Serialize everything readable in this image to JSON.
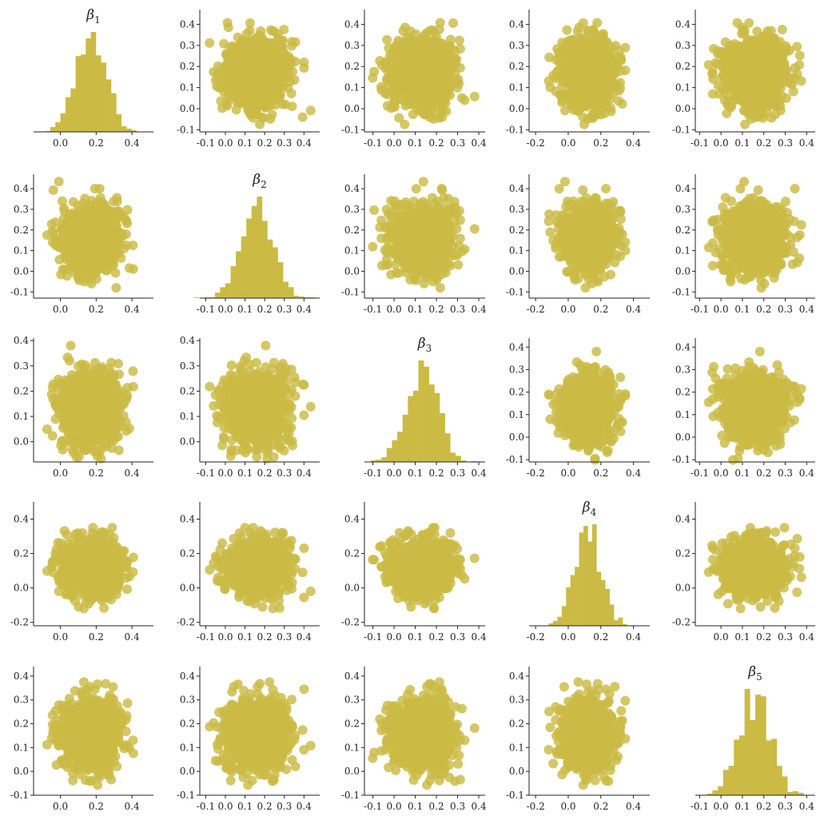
{
  "chart_data": {
    "type": "scatter",
    "layout": "pair-plot",
    "color": "#cbbb45",
    "grid": false,
    "legend": "none",
    "variables": [
      {
        "symbol": "β",
        "subscript": "1",
        "mean": 0.17,
        "sd": 0.085,
        "xlim": [
          -0.15,
          0.52
        ],
        "xticks": [
          "0.0",
          "0.2",
          "0.4"
        ],
        "ylim": [
          -0.11,
          0.47
        ],
        "yticks": [
          "-0.1",
          "0.0",
          "0.1",
          "0.2",
          "0.3",
          "0.4"
        ]
      },
      {
        "symbol": "β",
        "subscript": "2",
        "mean": 0.16,
        "sd": 0.08,
        "xlim": [
          -0.13,
          0.48
        ],
        "xticks": [
          "-0.1",
          "0.0",
          "0.1",
          "0.2",
          "0.3",
          "0.4"
        ],
        "ylim": [
          -0.13,
          0.47
        ],
        "yticks": [
          "-0.1",
          "0.0",
          "0.1",
          "0.2",
          "0.3",
          "0.4"
        ]
      },
      {
        "symbol": "β",
        "subscript": "3",
        "mean": 0.14,
        "sd": 0.075,
        "xlim": [
          -0.14,
          0.43
        ],
        "xticks": [
          "-0.1",
          "0.0",
          "0.1",
          "0.2",
          "0.3",
          "0.4"
        ],
        "ylim": [
          -0.11,
          0.44
        ],
        "yticks": [
          "-0.1",
          "0.0",
          "0.1",
          "0.2",
          "0.3",
          "0.4"
        ]
      },
      {
        "symbol": "β",
        "subscript": "4",
        "mean": 0.12,
        "sd": 0.08,
        "xlim": [
          -0.24,
          0.5
        ],
        "xticks": [
          "-0.2",
          "0.0",
          "0.2",
          "0.4"
        ],
        "ylim": [
          -0.22,
          0.5
        ],
        "yticks": [
          "-0.2",
          "0.0",
          "0.2",
          "0.4"
        ]
      },
      {
        "symbol": "β",
        "subscript": "5",
        "mean": 0.16,
        "sd": 0.075,
        "xlim": [
          -0.12,
          0.44
        ],
        "xticks": [
          "-0.1",
          "0.0",
          "0.1",
          "0.2",
          "0.3",
          "0.4"
        ],
        "ylim": [
          -0.1,
          0.44
        ],
        "yticks": [
          "-0.1",
          "0.0",
          "0.1",
          "0.2",
          "0.3",
          "0.4"
        ]
      }
    ],
    "overrides": {
      "cells": {
        "0-1": {
          "xticks": [
            "-0.1",
            "0.0",
            "0.1",
            "0.2",
            "0.3",
            "0.4"
          ],
          "xtick_labels": [
            "-0.1",
            "0.0",
            "0.1",
            "0.2",
            "0.3",
            "0.4"
          ]
        },
        "1-2": {
          "xticks": [
            "-0.1",
            "0.0",
            "0.1",
            "0.2",
            "0.3",
            "0.4"
          ],
          "xtick_labels": [
            "-0.1",
            "0.0",
            "0.1",
            "0.2",
            "0.3",
            "0.4"
          ]
        },
        "2-0": {
          "ylim": [
            -0.08,
            0.41
          ],
          "yticks": [
            "0.0",
            "0.1",
            "0.2",
            "0.3",
            "0.4"
          ]
        },
        "2-1": {
          "ylim": [
            -0.08,
            0.41
          ],
          "yticks": [
            "0.0",
            "0.1",
            "0.2",
            "0.3",
            "0.4"
          ]
        },
        "3-4": {
          "xticks": [
            "0.0",
            "0.1",
            "0.2",
            "0.3",
            "0.4"
          ]
        },
        "4-1": {
          "xticks": [
            "-0.1",
            "0.0",
            "0.1",
            "0.2",
            "0.3",
            "0.4"
          ]
        }
      },
      "x_label_rows": {
        "1": [
          "0.0",
          "0.2",
          "0.4"
        ]
      }
    }
  }
}
